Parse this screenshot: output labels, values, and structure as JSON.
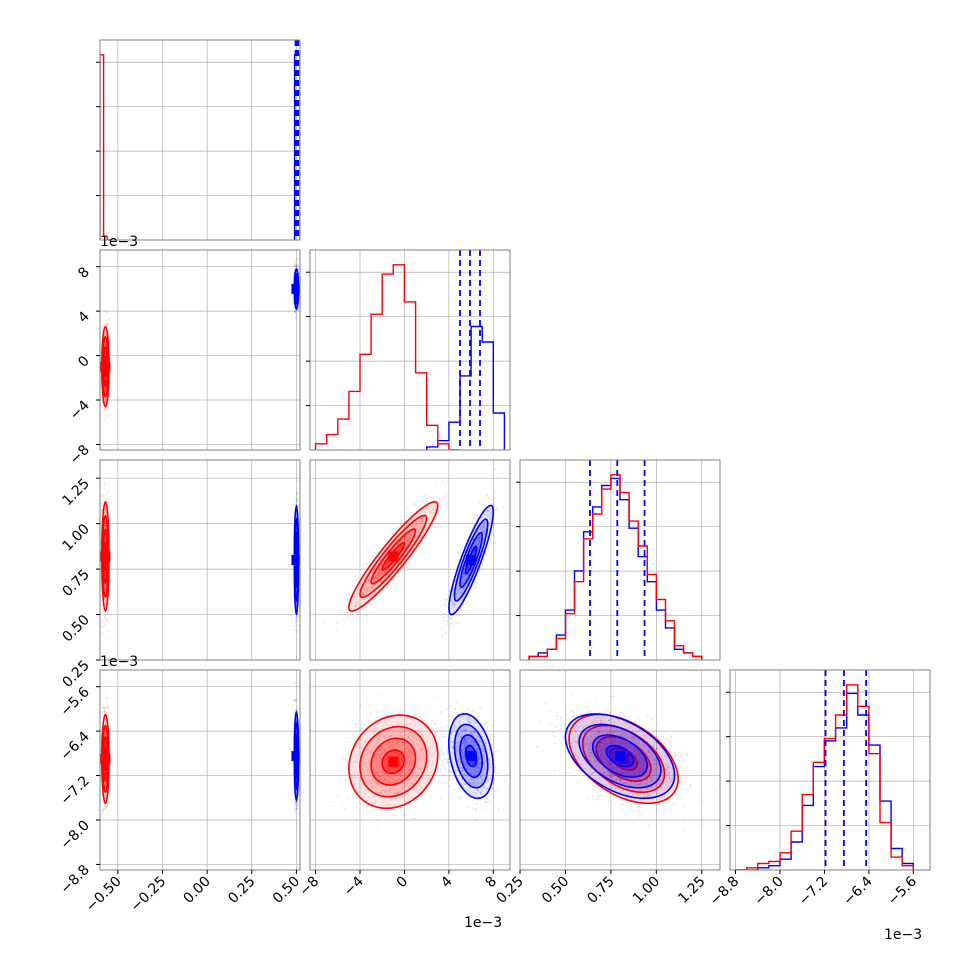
{
  "chart_data": {
    "type": "corner",
    "colors": {
      "red": "#ff0000",
      "blue": "#0000ff",
      "grid": "#b0b0b0",
      "frame": "#808080"
    },
    "series": [
      {
        "color": "#ff0000"
      },
      {
        "color": "#0000ff"
      }
    ],
    "grid": true,
    "parameters": [
      {
        "index": 0,
        "range": [
          -0.6,
          0.52
        ],
        "ticks": [
          "-0.50",
          "-0.25",
          "0.00",
          "0.25",
          "0.50"
        ],
        "tick_values": [
          -0.5,
          -0.25,
          0.0,
          0.25,
          0.5
        ],
        "exponent": ""
      },
      {
        "index": 1,
        "range": [
          -8.5,
          9.5
        ],
        "ticks": [
          "-8",
          "-4",
          "0",
          "4",
          "8"
        ],
        "tick_values": [
          -8,
          -4,
          0,
          4,
          8
        ],
        "exponent": "1e−3"
      },
      {
        "index": 2,
        "range": [
          0.25,
          1.35
        ],
        "ticks": [
          "0.25",
          "0.50",
          "0.75",
          "1.00",
          "1.25"
        ],
        "tick_values": [
          0.25,
          0.5,
          0.75,
          1.0,
          1.25
        ],
        "exponent": "1e−3"
      },
      {
        "index": 3,
        "range": [
          -8.9,
          -5.3
        ],
        "ticks": [
          "-8.8",
          "-8.0",
          "-7.2",
          "-6.4",
          "-5.6"
        ],
        "tick_values": [
          -8.8,
          -8.0,
          -7.2,
          -6.4,
          -5.6
        ],
        "exponent": "1e−3"
      }
    ],
    "exponent_labels": {
      "row1_y": "1e−3",
      "row2_y": "1e−3",
      "col1_x": "1e−3",
      "col3_x": "1e−3"
    },
    "histograms": [
      {
        "param": 0,
        "red": {
          "edges": [
            -0.6,
            -0.58,
            -0.56,
            -0.54
          ],
          "counts": [
            100,
            2,
            0
          ]
        },
        "blue": {
          "edges": [
            0.49,
            0.5,
            0.51,
            0.52
          ],
          "counts": [
            100,
            100,
            100
          ]
        },
        "quantiles": [
          0.495,
          0.505,
          0.51
        ]
      },
      {
        "param": 1,
        "red": {
          "edges": [
            -8,
            -7,
            -6,
            -5,
            -4,
            -3,
            -2,
            -1,
            0,
            1,
            2,
            3,
            4,
            5
          ],
          "counts": [
            2,
            5,
            10,
            19,
            31,
            44,
            57,
            60,
            48,
            25,
            8,
            2,
            0
          ]
        },
        "blue": {
          "edges": [
            2,
            3,
            4,
            5,
            6,
            7,
            8,
            9
          ],
          "counts": [
            1,
            3,
            9,
            24,
            40,
            35,
            12
          ]
        },
        "quantiles": [
          5.0,
          5.9,
          6.8
        ]
      },
      {
        "param": 2,
        "red": {
          "edges": [
            0.3,
            0.35,
            0.4,
            0.45,
            0.5,
            0.55,
            0.6,
            0.65,
            0.7,
            0.75,
            0.8,
            0.85,
            0.9,
            0.95,
            1.0,
            1.05,
            1.1,
            1.15,
            1.2,
            1.25
          ],
          "counts": [
            1,
            1,
            3,
            6,
            13,
            22,
            34,
            41,
            48,
            52,
            47,
            39,
            32,
            24,
            17,
            11,
            4,
            2,
            1
          ]
        },
        "blue": {
          "edges": [
            0.3,
            0.35,
            0.4,
            0.45,
            0.5,
            0.55,
            0.6,
            0.65,
            0.7,
            0.75,
            0.8,
            0.85,
            0.9,
            0.95,
            1.0,
            1.05,
            1.1,
            1.15,
            1.2,
            1.25
          ],
          "counts": [
            1,
            2,
            3,
            7,
            14,
            25,
            36,
            43,
            49,
            51,
            45,
            37,
            29,
            22,
            14,
            9,
            3,
            2,
            1
          ]
        },
        "quantiles": [
          0.635,
          0.785,
          0.935
        ]
      },
      {
        "param": 3,
        "red": {
          "edges": [
            -8.8,
            -8.6,
            -8.4,
            -8.2,
            -8.0,
            -7.8,
            -7.6,
            -7.4,
            -7.2,
            -7.0,
            -6.8,
            -6.6,
            -6.4,
            -6.2,
            -6.0,
            -5.8,
            -5.6
          ],
          "counts": [
            0,
            1,
            3,
            4,
            8,
            18,
            35,
            50,
            61,
            72,
            86,
            76,
            54,
            22,
            6,
            2
          ]
        },
        "blue": {
          "edges": [
            -8.8,
            -8.6,
            -8.4,
            -8.2,
            -8.0,
            -7.8,
            -7.6,
            -7.4,
            -7.2,
            -7.0,
            -6.8,
            -6.6,
            -6.4,
            -6.2,
            -6.0,
            -5.8,
            -5.6
          ],
          "counts": [
            0,
            0,
            1,
            2,
            5,
            13,
            30,
            48,
            60,
            66,
            82,
            72,
            58,
            32,
            10,
            3
          ]
        },
        "quantiles": [
          -7.18,
          -6.85,
          -6.45
        ]
      }
    ],
    "scatter_clouds": [
      {
        "row": 1,
        "col": 0,
        "red": {
          "mean": [
            -0.57,
            -1.0
          ],
          "sd": [
            0.01,
            1.8
          ],
          "corr": 0.0
        },
        "blue": {
          "mean": [
            0.5,
            6.0
          ],
          "sd": [
            0.006,
            0.9
          ],
          "corr": 0.0
        }
      },
      {
        "row": 2,
        "col": 0,
        "red": {
          "mean": [
            -0.57,
            0.82
          ],
          "sd": [
            0.01,
            0.15
          ],
          "corr": 0.0
        },
        "blue": {
          "mean": [
            0.5,
            0.8
          ],
          "sd": [
            0.006,
            0.15
          ],
          "corr": 0.0
        }
      },
      {
        "row": 2,
        "col": 1,
        "red": {
          "mean": [
            -1.0,
            0.82
          ],
          "sd": [
            2.0,
            0.15
          ],
          "corr": 0.93
        },
        "blue": {
          "mean": [
            6.0,
            0.8
          ],
          "sd": [
            1.0,
            0.15
          ],
          "corr": 0.88
        }
      },
      {
        "row": 3,
        "col": 0,
        "red": {
          "mean": [
            -0.57,
            -6.9
          ],
          "sd": [
            0.01,
            0.4
          ],
          "corr": 0.0
        },
        "blue": {
          "mean": [
            0.5,
            -6.85
          ],
          "sd": [
            0.006,
            0.4
          ],
          "corr": 0.0
        }
      },
      {
        "row": 3,
        "col": 1,
        "red": {
          "mean": [
            -1.0,
            -6.95
          ],
          "sd": [
            2.0,
            0.42
          ],
          "corr": 0.15
        },
        "blue": {
          "mean": [
            6.0,
            -6.85
          ],
          "sd": [
            1.0,
            0.38
          ],
          "corr": -0.3
        }
      },
      {
        "row": 3,
        "col": 2,
        "red": {
          "mean": [
            0.82,
            -6.9
          ],
          "sd": [
            0.15,
            0.4
          ],
          "corr": -0.45
        },
        "blue": {
          "mean": [
            0.8,
            -6.85
          ],
          "sd": [
            0.15,
            0.38
          ],
          "corr": -0.45
        }
      }
    ]
  }
}
